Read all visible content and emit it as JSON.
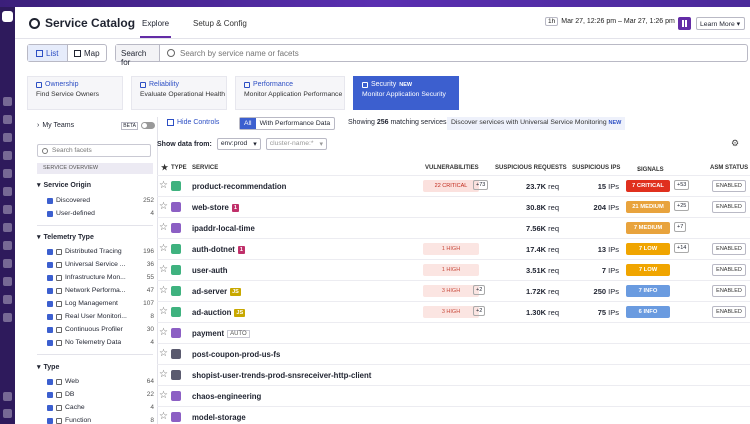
{
  "header": {
    "title": "Service Catalog",
    "tabs": [
      "Explore",
      "Setup & Config"
    ],
    "time_badge": "1h",
    "time_range": "Mar 27, 12:26 pm – Mar 27, 1:26 pm",
    "learn_more": "Learn More"
  },
  "view": {
    "list_label": "List",
    "map_label": "Map"
  },
  "search": {
    "label": "Search for",
    "placeholder": "Search by service name or facets"
  },
  "feature_tabs": [
    {
      "title": "Ownership",
      "subtitle": "Find Service Owners",
      "new": ""
    },
    {
      "title": "Reliability",
      "subtitle": "Evaluate Operational Health",
      "new": ""
    },
    {
      "title": "Performance",
      "subtitle": "Monitor Application Performance",
      "new": ""
    },
    {
      "title": "Security",
      "subtitle": "Monitor Application Security",
      "new": "NEW"
    }
  ],
  "facets": {
    "my_teams": "My Teams",
    "beta": "BETA",
    "search_placeholder": "Search facets",
    "overview_label": "SERVICE OVERVIEW",
    "origin_title": "Service Origin",
    "origin": [
      {
        "label": "Discovered",
        "count": "252"
      },
      {
        "label": "User-defined",
        "count": "4"
      }
    ],
    "telemetry_title": "Telemetry Type",
    "telemetry": [
      {
        "label": "Distributed Tracing",
        "count": "196"
      },
      {
        "label": "Universal Service ...",
        "count": "36"
      },
      {
        "label": "Infrastructure Mon...",
        "count": "55"
      },
      {
        "label": "Network Performa...",
        "count": "47"
      },
      {
        "label": "Log Management",
        "count": "107"
      },
      {
        "label": "Real User Monitori...",
        "count": "8"
      },
      {
        "label": "Continuous Profiler",
        "count": "30"
      },
      {
        "label": "No Telemetry Data",
        "count": "4"
      }
    ],
    "type_title": "Type",
    "types": [
      {
        "label": "Web",
        "count": "64"
      },
      {
        "label": "DB",
        "count": "22"
      },
      {
        "label": "Cache",
        "count": "4"
      },
      {
        "label": "Function",
        "count": "8"
      }
    ]
  },
  "controls": {
    "hide_controls": "Hide Controls",
    "seg_all": "All",
    "seg_perf": "With Performance Data",
    "matching_prefix": "Showing",
    "matching_count": "256",
    "matching_suffix": "matching services",
    "discover_text": "Discover services with Universal Service Monitoring",
    "discover_new": "NEW",
    "show_from": "Show data from:",
    "env_value": "env:prod",
    "cluster_placeholder": "cluster-name:*"
  },
  "table": {
    "columns": {
      "type": "TYPE",
      "service": "SERVICE",
      "vulnerabilities": "VULNERABILITIES",
      "requests": "SUSPICIOUS REQUESTS",
      "ips": "SUSPICIOUS IPS",
      "signals": "SIGNALS",
      "asm": "ASM STATUS"
    },
    "rows": [
      {
        "name": "product-recommendation",
        "tag": "",
        "vuln": "22 CRITICAL",
        "vuln_plus": "+73",
        "req": "23.7K",
        "ips": "15",
        "signal": "7 CRITICAL",
        "signal_plus": "+53",
        "asm": "ENABLED"
      },
      {
        "name": "web-store",
        "tag": "1",
        "vuln": "",
        "vuln_plus": "",
        "req": "30.8K",
        "ips": "204",
        "signal": "21 MEDIUM",
        "signal_plus": "+25",
        "asm": "ENABLED"
      },
      {
        "name": "ipaddr-local-time",
        "tag": "",
        "vuln": "",
        "vuln_plus": "",
        "req": "7.56K",
        "ips": "",
        "signal": "7 MEDIUM",
        "signal_plus": "+7",
        "asm": ""
      },
      {
        "name": "auth-dotnet",
        "tag": "1",
        "vuln": "1 HIGH",
        "vuln_plus": "",
        "req": "17.4K",
        "ips": "13",
        "signal": "7 LOW",
        "signal_plus": "+14",
        "asm": "ENABLED"
      },
      {
        "name": "user-auth",
        "tag": "",
        "vuln": "1 HIGH",
        "vuln_plus": "",
        "req": "3.51K",
        "ips": "7",
        "signal": "7 LOW",
        "signal_plus": "",
        "asm": "ENABLED"
      },
      {
        "name": "ad-server",
        "tag": "JS",
        "vuln": "3 HIGH",
        "vuln_plus": "+2",
        "req": "1.72K",
        "ips": "250",
        "signal": "7 INFO",
        "signal_plus": "",
        "asm": "ENABLED"
      },
      {
        "name": "ad-auction",
        "tag": "JS",
        "vuln": "3 HIGH",
        "vuln_plus": "+2",
        "req": "1.30K",
        "ips": "75",
        "signal": "6 INFO",
        "signal_plus": "",
        "asm": "ENABLED"
      },
      {
        "name": "payment",
        "tag": "AUTO",
        "vuln": "",
        "vuln_plus": "",
        "req": "",
        "ips": "",
        "signal": "",
        "signal_plus": "",
        "asm": ""
      },
      {
        "name": "post-coupon-prod-us-fs",
        "tag": "",
        "vuln": "",
        "vuln_plus": "",
        "req": "",
        "ips": "",
        "signal": "",
        "signal_plus": "",
        "asm": ""
      },
      {
        "name": "shopist-user-trends-prod-snsreceiver-http-client",
        "tag": "",
        "vuln": "",
        "vuln_plus": "",
        "req": "",
        "ips": "",
        "signal": "",
        "signal_plus": "",
        "asm": ""
      },
      {
        "name": "chaos-engineering",
        "tag": "",
        "vuln": "",
        "vuln_plus": "",
        "req": "",
        "ips": "",
        "signal": "",
        "signal_plus": "",
        "asm": ""
      },
      {
        "name": "model-storage",
        "tag": "",
        "vuln": "",
        "vuln_plus": "",
        "req": "",
        "ips": "",
        "signal": "",
        "signal_plus": "",
        "asm": ""
      }
    ],
    "req_unit": "req",
    "ips_unit": "IPs"
  },
  "colors": {
    "accent": "#632ca6",
    "critical": "#e0301e",
    "medium": "#e8a33d",
    "low": "#f0a500",
    "info": "#6a9be0",
    "web_icon": "#3fb27f",
    "function_icon": "#8c5fc4",
    "queue_icon": "#5a5a6e"
  }
}
